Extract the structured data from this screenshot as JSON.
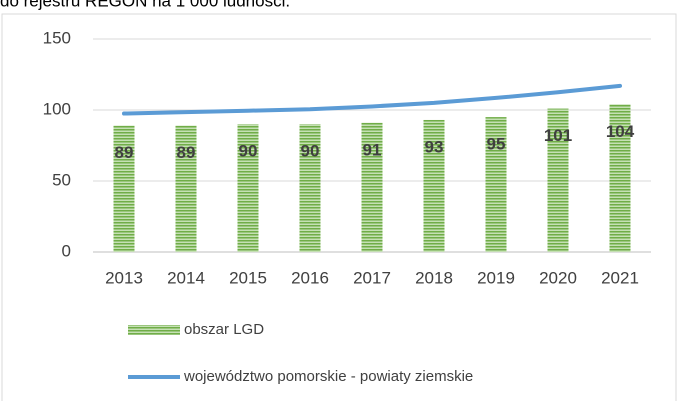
{
  "chart_data": {
    "type": "bar",
    "title": "do rejestru REGON na 1 000 ludności.",
    "categories": [
      "2013",
      "2014",
      "2015",
      "2016",
      "2017",
      "2018",
      "2019",
      "2020",
      "2021"
    ],
    "series": [
      {
        "name": "obszar LGD",
        "type": "bar",
        "color": "#70ad47",
        "values": [
          89,
          89,
          90,
          90,
          91,
          93,
          95,
          101,
          104
        ]
      },
      {
        "name": "województwo pomorskie - powiaty ziemskie",
        "type": "line",
        "color": "#5b9bd5",
        "values": [
          97.5,
          98.5,
          99.5,
          100.5,
          102.5,
          105,
          108.5,
          112.5,
          117
        ]
      }
    ],
    "ylim": [
      0,
      150
    ],
    "yticks": [
      0,
      50,
      100,
      150
    ],
    "grid": true
  }
}
